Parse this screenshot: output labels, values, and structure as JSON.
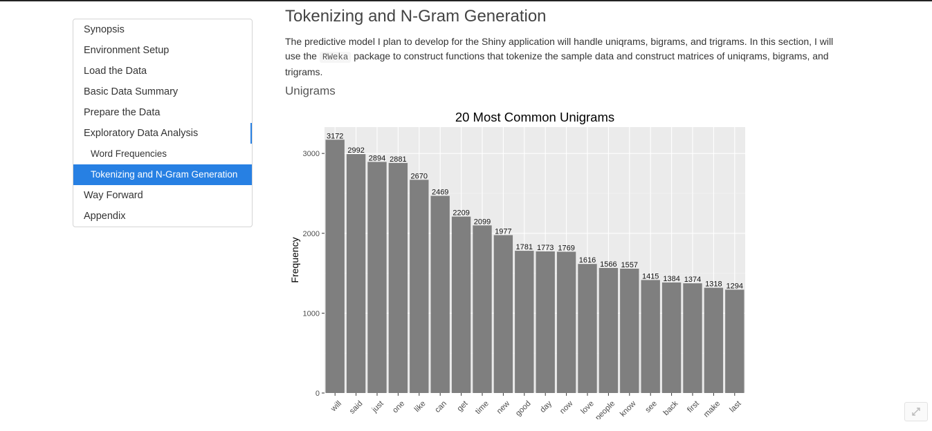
{
  "toc": {
    "items": [
      {
        "label": "Synopsis",
        "level": 1,
        "active": false
      },
      {
        "label": "Environment Setup",
        "level": 1,
        "active": false
      },
      {
        "label": "Load the Data",
        "level": 1,
        "active": false
      },
      {
        "label": "Basic Data Summary",
        "level": 1,
        "active": false
      },
      {
        "label": "Prepare the Data",
        "level": 1,
        "active": false
      },
      {
        "label": "Exploratory Data Analysis",
        "level": 1,
        "active": false
      },
      {
        "label": "Word Frequencies",
        "level": 2,
        "active": false
      },
      {
        "label": "Tokenizing and N-Gram Generation",
        "level": 2,
        "active": true
      },
      {
        "label": "Way Forward",
        "level": 1,
        "active": false
      },
      {
        "label": "Appendix",
        "level": 1,
        "active": false
      }
    ]
  },
  "main": {
    "title": "Tokenizing and N-Gram Generation",
    "paragraph": {
      "part1": "The predictive model I plan to develop for the Shiny application will handle uniqrams, bigrams, and trigrams. In this section, I will use the ",
      "code": "RWeka",
      "part2": " package to construct functions that tokenize the sample data and construct matrices of uniqrams, bigrams, and trigrams."
    },
    "subtitle": "Unigrams"
  },
  "colors": {
    "accent": "#2780e3",
    "bar": "#7f7f7f",
    "panel": "#ebebeb"
  },
  "chart_data": {
    "type": "bar",
    "title": "20 Most Common Unigrams",
    "xlabel": "",
    "ylabel": "Frequency",
    "categories": [
      "will",
      "said",
      "just",
      "one",
      "like",
      "can",
      "get",
      "time",
      "new",
      "good",
      "day",
      "now",
      "love",
      "people",
      "know",
      "see",
      "back",
      "first",
      "make",
      "last"
    ],
    "values": [
      3172,
      2992,
      2894,
      2881,
      2670,
      2469,
      2209,
      2099,
      1977,
      1781,
      1773,
      1769,
      1616,
      1566,
      1557,
      1415,
      1384,
      1374,
      1318,
      1294
    ],
    "ylim": [
      0,
      3330
    ],
    "yticks": [
      0,
      1000,
      2000,
      3000
    ],
    "grid": true,
    "data_labels": true
  }
}
